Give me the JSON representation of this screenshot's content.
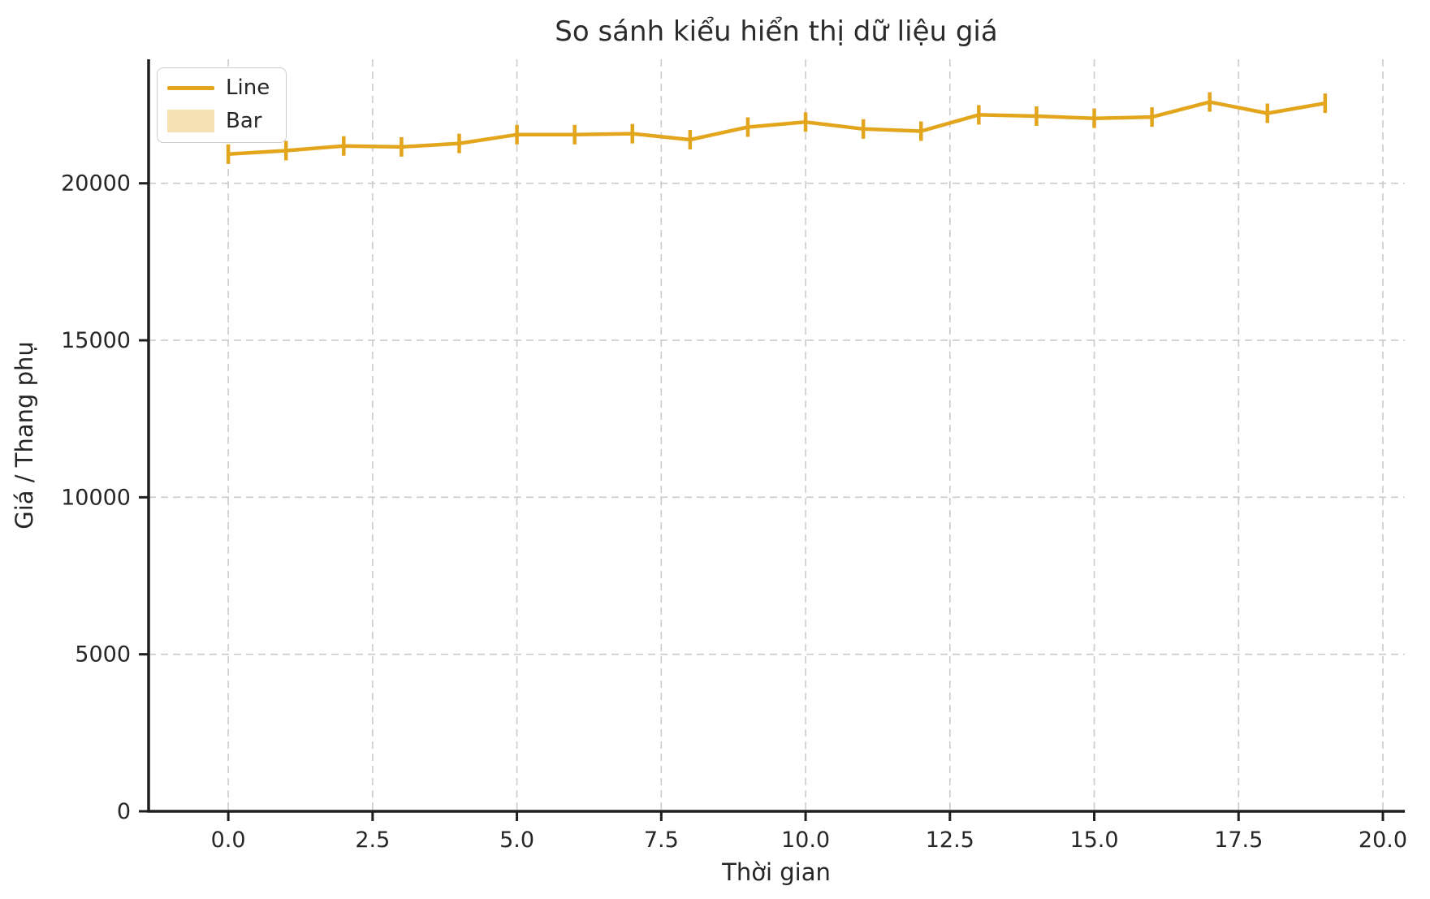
{
  "chart_data": {
    "type": "line",
    "title": "So sánh kiểu hiển thị dữ liệu giá",
    "xlabel": "Thời gian",
    "ylabel": "Giá / Thang phụ",
    "x": [
      0,
      1,
      2,
      3,
      4,
      5,
      6,
      7,
      8,
      9,
      10,
      11,
      12,
      13,
      14,
      15,
      16,
      17,
      18,
      19
    ],
    "series": [
      {
        "name": "Line",
        "style": "line",
        "marker": "vertical-tick",
        "color": "#E2A51C",
        "values": [
          20930,
          21040,
          21190,
          21160,
          21270,
          21550,
          21550,
          21580,
          21390,
          21790,
          21950,
          21730,
          21660,
          22180,
          22140,
          22070,
          22110,
          22590,
          22230,
          22550
        ]
      },
      {
        "name": "Bar",
        "style": "bar",
        "color": "#F5E1B2",
        "values": []
      }
    ],
    "legend": {
      "position": "upper-left",
      "entries": [
        {
          "label": "Line",
          "swatch": "line",
          "color": "#E2A51C"
        },
        {
          "label": "Bar",
          "swatch": "patch",
          "color": "#F5E1B2"
        }
      ]
    },
    "xlim": [
      -1.38,
      20.38
    ],
    "ylim": [
      0,
      23950
    ],
    "x_tick_values": [
      0,
      2.5,
      5,
      7.5,
      10,
      12.5,
      15,
      17.5,
      20
    ],
    "x_tick_labels": [
      "0.0",
      "2.5",
      "5.0",
      "7.5",
      "10.0",
      "12.5",
      "15.0",
      "17.5",
      "20.0"
    ],
    "y_tick_values": [
      0,
      5000,
      10000,
      15000,
      20000
    ],
    "y_tick_labels": [
      "0",
      "5000",
      "10000",
      "15000",
      "20000"
    ],
    "grid": true,
    "grid_style": "dashed",
    "colors": {
      "line": "#E2A51C",
      "bar_fill": "#F5E1B2",
      "grid": "#CBCBCB",
      "spine": "#1f1f1f",
      "text": "#262626",
      "background": "#ffffff"
    }
  }
}
